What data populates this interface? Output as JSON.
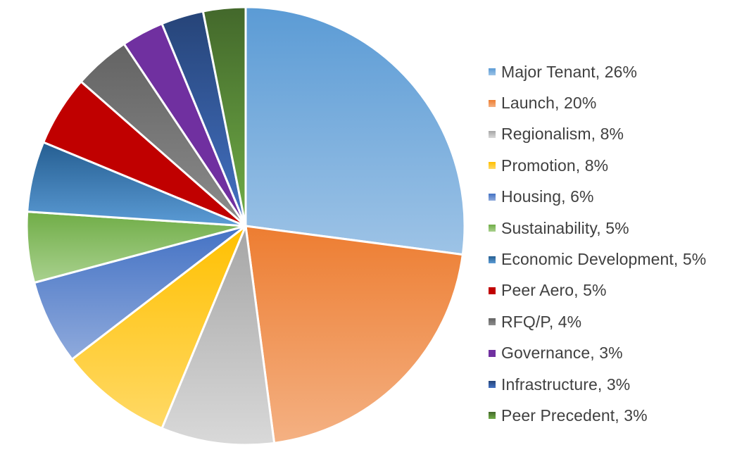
{
  "chart_data": {
    "type": "pie",
    "title": "",
    "legend_position": "right",
    "start_angle_deg": 0,
    "direction": "clockwise",
    "series": [
      {
        "label": "Major Tenant, 26%",
        "name": "Major Tenant",
        "value": 26,
        "color": "#5b9bd5",
        "color_light": "#9dc3e6"
      },
      {
        "label": "Launch, 20%",
        "name": "Launch",
        "value": 20,
        "color": "#ed7d31",
        "color_light": "#f4b183"
      },
      {
        "label": "Regionalism, 8%",
        "name": "Regionalism",
        "value": 8,
        "color": "#a5a5a5",
        "color_light": "#d9d9d9"
      },
      {
        "label": "Promotion, 8%",
        "name": "Promotion",
        "value": 8,
        "color": "#ffc000",
        "color_light": "#ffd966"
      },
      {
        "label": "Housing, 6%",
        "name": "Housing",
        "value": 6,
        "color": "#4472c4",
        "color_light": "#8faadc"
      },
      {
        "label": "Sustainability, 5%",
        "name": "Sustainability",
        "value": 5,
        "color": "#70ad47",
        "color_light": "#a9d18e"
      },
      {
        "label": "Economic Development, 5%",
        "name": "Economic Development",
        "value": 5,
        "color": "#255e91",
        "color_light": "#5b9bd5"
      },
      {
        "label": "Peer Aero, 5%",
        "name": "Peer Aero",
        "value": 5,
        "color": "#c00000",
        "color_light": "#c00000"
      },
      {
        "label": "RFQ/P, 4%",
        "name": "RFQ/P",
        "value": 4,
        "color": "#636363",
        "color_light": "#8c8c8c"
      },
      {
        "label": "Governance, 3%",
        "name": "Governance",
        "value": 3,
        "color": "#7030a0",
        "color_light": "#7030a0"
      },
      {
        "label": "Infrastructure, 3%",
        "name": "Infrastructure",
        "value": 3,
        "color": "#264478",
        "color_light": "#4472c4"
      },
      {
        "label": "Peer Precedent, 3%",
        "name": "Peer Precedent",
        "value": 3,
        "color": "#43682b",
        "color_light": "#70ad47"
      }
    ]
  }
}
